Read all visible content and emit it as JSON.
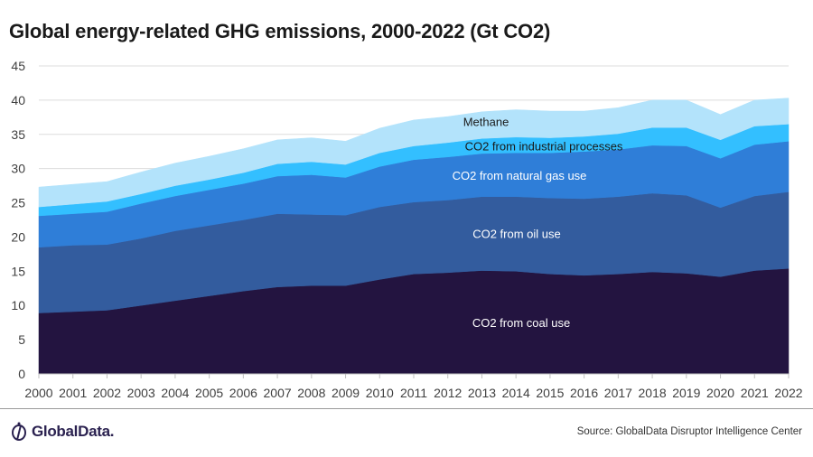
{
  "header": {
    "title": "Global energy-related GHG emissions, 2000-2022 (Gt CO2)"
  },
  "footer": {
    "logo_text": "GlobalData.",
    "source": "Source: GlobalData Disruptor Intelligence Center"
  },
  "colors": {
    "coal": "#231440",
    "oil": "#335c9e",
    "gas": "#2f7ed8",
    "industrial": "#33bfff",
    "methane": "#b3e3fb"
  },
  "chart_data": {
    "type": "area",
    "stacked": true,
    "title": "Global energy-related GHG emissions, 2000-2022 (Gt CO2)",
    "xlabel": "",
    "ylabel": "",
    "ylim": [
      0,
      45
    ],
    "yticks": [
      0,
      5,
      10,
      15,
      20,
      25,
      30,
      35,
      40,
      45
    ],
    "grid": true,
    "legend": "inline-labels",
    "x": [
      "2000",
      "2001",
      "2002",
      "2003",
      "2004",
      "2005",
      "2006",
      "2007",
      "2008",
      "2009",
      "2010",
      "2011",
      "2012",
      "2013",
      "2014",
      "2015",
      "2016",
      "2017",
      "2018",
      "2019",
      "2020",
      "2021",
      "2022"
    ],
    "series": [
      {
        "name": "CO2 from coal use",
        "key": "coal",
        "label_color": "#ffffff",
        "values": [
          8.9,
          9.1,
          9.3,
          10.0,
          10.7,
          11.4,
          12.1,
          12.7,
          12.9,
          12.9,
          13.8,
          14.6,
          14.8,
          15.1,
          15.0,
          14.6,
          14.4,
          14.6,
          14.9,
          14.7,
          14.2,
          15.1,
          15.4
        ]
      },
      {
        "name": "CO2 from oil use",
        "key": "oil",
        "label_color": "#ffffff",
        "values": [
          9.6,
          9.7,
          9.6,
          9.8,
          10.2,
          10.3,
          10.4,
          10.7,
          10.4,
          10.3,
          10.6,
          10.5,
          10.6,
          10.8,
          10.9,
          11.1,
          11.2,
          11.3,
          11.5,
          11.4,
          10.1,
          10.9,
          11.2
        ]
      },
      {
        "name": "CO2 from natural gas use",
        "key": "gas",
        "label_color": "#ffffff",
        "values": [
          4.6,
          4.6,
          4.8,
          5.1,
          5.1,
          5.2,
          5.3,
          5.5,
          5.8,
          5.5,
          5.9,
          6.2,
          6.3,
          6.3,
          6.4,
          6.6,
          6.9,
          6.9,
          7.0,
          7.2,
          7.2,
          7.5,
          7.4
        ]
      },
      {
        "name": "CO2 from industrial processes",
        "key": "industrial",
        "label_color": "#1a1a1a",
        "values": [
          1.3,
          1.4,
          1.5,
          1.4,
          1.5,
          1.5,
          1.6,
          1.8,
          1.9,
          1.9,
          2.0,
          2.0,
          2.1,
          2.2,
          2.3,
          2.2,
          2.2,
          2.3,
          2.6,
          2.7,
          2.7,
          2.7,
          2.5
        ]
      },
      {
        "name": "Methane",
        "key": "methane",
        "label_color": "#1a1a1a",
        "values": [
          2.9,
          2.9,
          2.9,
          3.2,
          3.3,
          3.4,
          3.5,
          3.5,
          3.5,
          3.4,
          3.6,
          3.8,
          3.8,
          3.9,
          4.0,
          3.9,
          3.7,
          3.8,
          4.0,
          4.0,
          3.7,
          3.8,
          3.8
        ]
      }
    ]
  }
}
